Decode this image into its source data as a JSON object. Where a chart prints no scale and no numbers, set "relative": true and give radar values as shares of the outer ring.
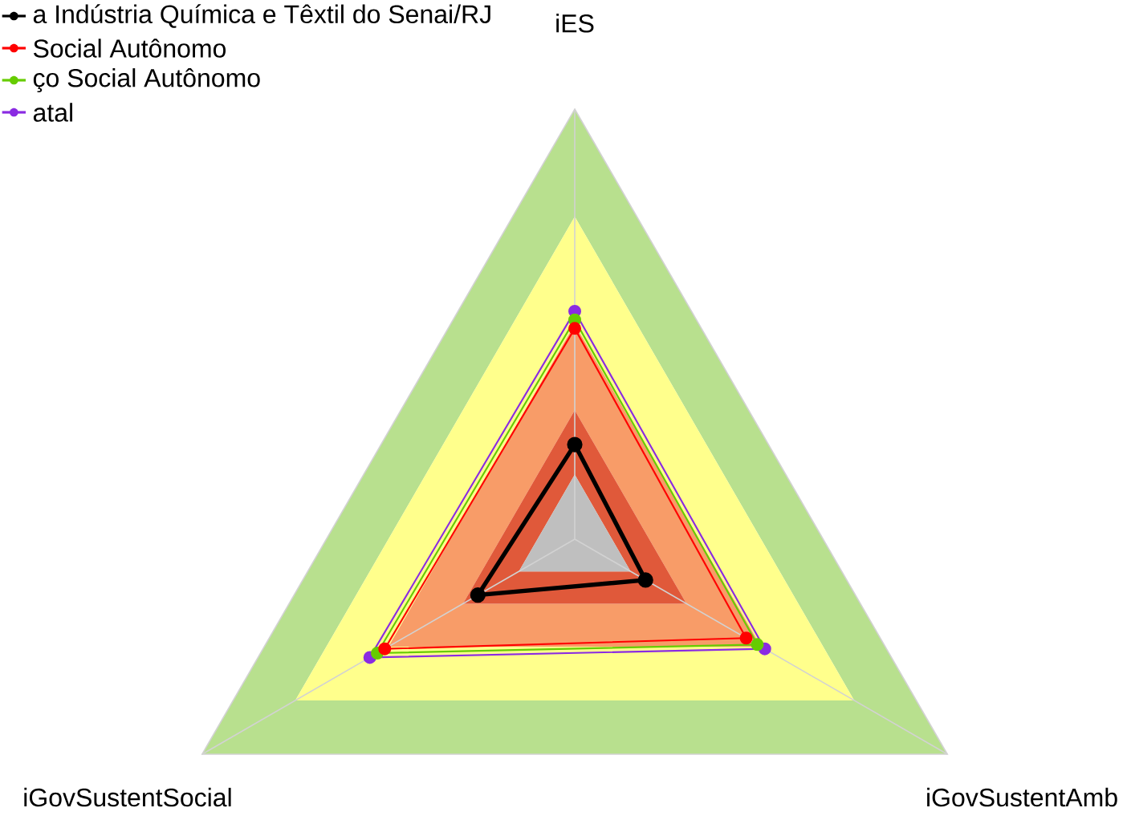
{
  "chart_data": {
    "type": "radar",
    "relative": true,
    "grid": true,
    "legend": "top left",
    "marker": "circle",
    "categories": [
      "iES",
      "iGovSustentAmb",
      "iGovSustentSocial"
    ],
    "series": [
      {
        "name": "a Indústria Química e Têxtil do Senai/RJ",
        "color": "#000000",
        "values": [
          0.22,
          0.19,
          0.26
        ]
      },
      {
        "name": "Social Autônomo",
        "color": "#ff0000",
        "values": [
          0.49,
          0.46,
          0.51
        ]
      },
      {
        "name": "ço Social Autônomo",
        "color": "#66cc00",
        "values": [
          0.51,
          0.49,
          0.53
        ]
      },
      {
        "name": "atal",
        "color": "#8a2be2",
        "values": [
          0.53,
          0.51,
          0.55
        ]
      }
    ]
  }
}
